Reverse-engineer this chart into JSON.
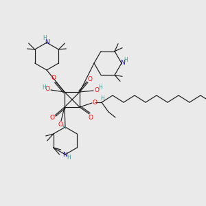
{
  "bg_color": "#eaeaea",
  "C": "#1a1a1a",
  "N": "#1a00ff",
  "O": "#ff0000",
  "H": "#3a9a9a",
  "lw": 0.85,
  "figsize": [
    3.0,
    3.0
  ],
  "dpi": 100
}
